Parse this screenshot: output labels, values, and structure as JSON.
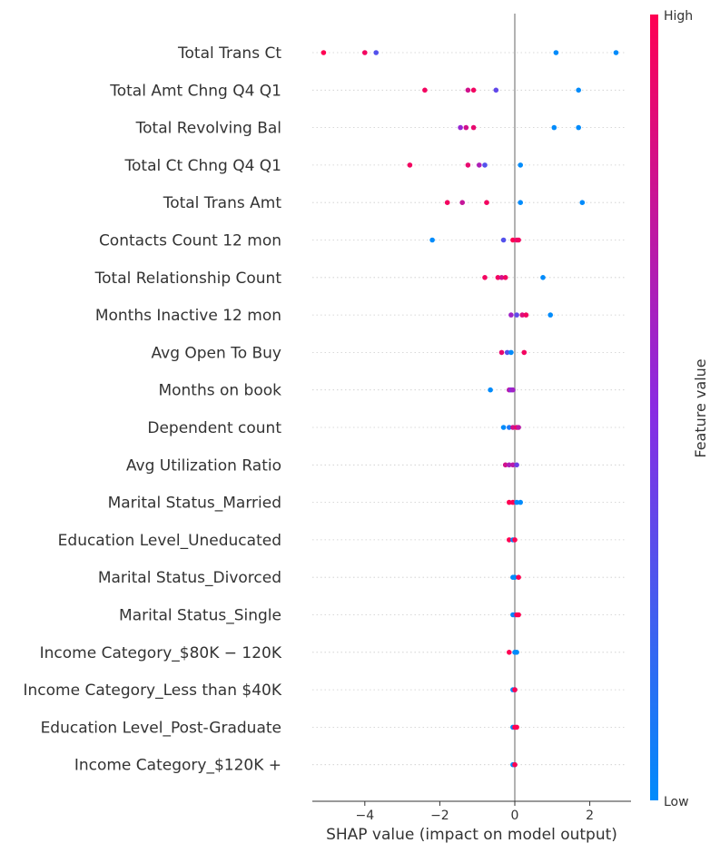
{
  "chart_data": {
    "type": "scatter",
    "subtype": "shap-beeswarm",
    "xlabel": "SHAP value (impact on model output)",
    "xlim": [
      -5.4,
      3.1
    ],
    "xticks": [
      -4,
      -2,
      0,
      2
    ],
    "xtick_labels": [
      "−4",
      "−2",
      "0",
      "2"
    ],
    "zero_line": 0,
    "colorbar": {
      "label": "Feature value",
      "high_label": "High",
      "low_label": "Low",
      "low_color": "#008bfb",
      "mid_color": "#8a2be2",
      "high_color": "#ff0052"
    },
    "features": [
      {
        "name": "Total Trans Ct",
        "points": [
          [
            -5.1,
            1.0
          ],
          [
            -4.0,
            0.95
          ],
          [
            -3.7,
            0.3
          ],
          [
            1.1,
            0.0
          ],
          [
            2.7,
            0.0
          ]
        ]
      },
      {
        "name": "Total Amt Chng Q4 Q1",
        "points": [
          [
            -2.4,
            0.95
          ],
          [
            -1.25,
            0.8
          ],
          [
            -1.1,
            0.95
          ],
          [
            -0.5,
            0.35
          ],
          [
            1.7,
            0.0
          ]
        ]
      },
      {
        "name": "Total Revolving Bal",
        "points": [
          [
            -1.45,
            0.55
          ],
          [
            -1.3,
            0.8
          ],
          [
            -1.1,
            0.9
          ],
          [
            1.05,
            0.0
          ],
          [
            1.7,
            0.0
          ]
        ]
      },
      {
        "name": "Total Ct Chng Q4 Q1",
        "points": [
          [
            -2.8,
            0.95
          ],
          [
            -1.25,
            0.9
          ],
          [
            -0.95,
            0.65
          ],
          [
            -0.8,
            0.3
          ],
          [
            0.15,
            0.0
          ]
        ]
      },
      {
        "name": "Total Trans Amt",
        "points": [
          [
            -1.8,
            0.95
          ],
          [
            -1.4,
            0.75
          ],
          [
            -0.75,
            0.95
          ],
          [
            0.15,
            0.0
          ],
          [
            1.8,
            0.0
          ]
        ]
      },
      {
        "name": "Contacts Count 12 mon",
        "points": [
          [
            -2.2,
            0.0
          ],
          [
            -0.3,
            0.3
          ],
          [
            -0.05,
            1.0
          ],
          [
            0.05,
            0.9
          ],
          [
            0.1,
            0.95
          ]
        ]
      },
      {
        "name": "Total Relationship Count",
        "points": [
          [
            -0.8,
            0.95
          ],
          [
            -0.45,
            0.95
          ],
          [
            -0.35,
            0.8
          ],
          [
            -0.25,
            0.95
          ],
          [
            0.75,
            0.0
          ]
        ]
      },
      {
        "name": "Months Inactive 12 mon",
        "points": [
          [
            -0.1,
            0.6
          ],
          [
            0.05,
            0.35
          ],
          [
            0.2,
            0.85
          ],
          [
            0.3,
            0.95
          ],
          [
            0.95,
            0.0
          ]
        ]
      },
      {
        "name": "Avg Open To Buy",
        "points": [
          [
            -0.35,
            0.9
          ],
          [
            -0.2,
            0.3
          ],
          [
            -0.1,
            0.0
          ],
          [
            0.25,
            0.95
          ]
        ]
      },
      {
        "name": "Months on book",
        "points": [
          [
            -0.65,
            0.0
          ],
          [
            -0.15,
            0.7
          ],
          [
            -0.1,
            0.5
          ],
          [
            -0.05,
            0.6
          ]
        ]
      },
      {
        "name": "Dependent count",
        "points": [
          [
            -0.3,
            0.0
          ],
          [
            -0.15,
            0.1
          ],
          [
            -0.05,
            0.8
          ],
          [
            0.05,
            0.95
          ],
          [
            0.1,
            0.7
          ]
        ]
      },
      {
        "name": "Avg Utilization Ratio",
        "points": [
          [
            -0.25,
            0.8
          ],
          [
            -0.15,
            0.65
          ],
          [
            -0.05,
            0.7
          ],
          [
            0.05,
            0.4
          ]
        ]
      },
      {
        "name": "Marital Status_Married",
        "points": [
          [
            -0.15,
            1.0
          ],
          [
            -0.05,
            1.0
          ],
          [
            0.05,
            0.0
          ],
          [
            0.15,
            0.0
          ]
        ]
      },
      {
        "name": "Education Level_Uneducated",
        "points": [
          [
            -0.15,
            1.0
          ],
          [
            -0.05,
            0.0
          ],
          [
            0.0,
            1.0
          ]
        ]
      },
      {
        "name": "Marital Status_Divorced",
        "points": [
          [
            -0.05,
            0.0
          ],
          [
            0.0,
            0.0
          ],
          [
            0.1,
            1.0
          ]
        ]
      },
      {
        "name": "Marital Status_Single",
        "points": [
          [
            -0.05,
            0.0
          ],
          [
            0.0,
            0.1
          ],
          [
            0.05,
            1.0
          ],
          [
            0.1,
            1.0
          ]
        ]
      },
      {
        "name": "Income Category_$80K - $120K",
        "display": "Income Category_$80K − 120K",
        "points": [
          [
            -0.15,
            1.0
          ],
          [
            0.0,
            0.0
          ],
          [
            0.05,
            0.0
          ]
        ]
      },
      {
        "name": "Income Category_Less than $40K",
        "points": [
          [
            -0.05,
            0.0
          ],
          [
            0.0,
            0.0
          ],
          [
            0.0,
            1.0
          ]
        ]
      },
      {
        "name": "Education Level_Post-Graduate",
        "points": [
          [
            -0.05,
            0.0
          ],
          [
            0.0,
            1.0
          ],
          [
            0.05,
            1.0
          ]
        ]
      },
      {
        "name": "Income Category_$120K +",
        "points": [
          [
            -0.05,
            0.0
          ],
          [
            0.0,
            0.0
          ],
          [
            0.0,
            1.0
          ]
        ]
      }
    ]
  }
}
